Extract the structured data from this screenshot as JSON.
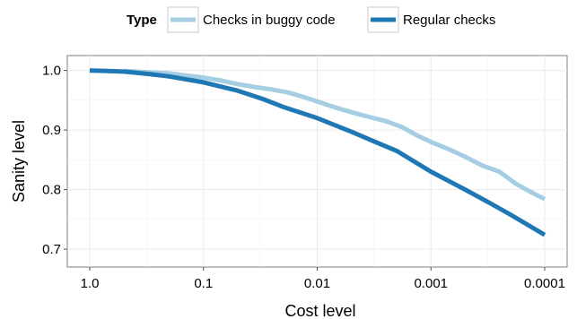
{
  "chart_data": {
    "type": "line",
    "xlabel": "Cost level",
    "ylabel": "Sanity level",
    "x_scale": "log-reversed",
    "xlim": [
      1.0,
      0.0001
    ],
    "ylim": [
      0.67,
      1.025
    ],
    "x_ticks": [
      {
        "value": 1.0,
        "label": "1.0"
      },
      {
        "value": 0.1,
        "label": "0.1"
      },
      {
        "value": 0.01,
        "label": "0.01"
      },
      {
        "value": 0.001,
        "label": "0.001"
      },
      {
        "value": 0.0001,
        "label": "0.0001"
      }
    ],
    "y_ticks": [
      {
        "value": 0.7,
        "label": "0.7"
      },
      {
        "value": 0.8,
        "label": "0.8"
      },
      {
        "value": 0.9,
        "label": "0.9"
      },
      {
        "value": 1.0,
        "label": "1.0"
      }
    ],
    "grid": true,
    "legend": {
      "placement": "top",
      "title": "Type",
      "entries": [
        {
          "label": "Checks in buggy code",
          "color": "#a6cee3"
        },
        {
          "label": "Regular checks",
          "color": "#1f78b4"
        }
      ]
    },
    "series": [
      {
        "name": "Checks in buggy code",
        "color": "#a6cee3",
        "x": [
          0.5,
          0.3,
          0.2,
          0.15,
          0.1,
          0.07,
          0.05,
          0.035,
          0.025,
          0.018,
          0.013,
          0.01,
          0.007,
          0.005,
          0.0035,
          0.0025,
          0.0018,
          0.0013,
          0.001,
          0.0007,
          0.0005,
          0.00035,
          0.00025,
          0.00018,
          0.00013,
          0.0001
        ],
        "y": [
          0.999,
          0.997,
          0.995,
          0.992,
          0.988,
          0.983,
          0.977,
          0.972,
          0.968,
          0.963,
          0.955,
          0.948,
          0.938,
          0.93,
          0.922,
          0.915,
          0.905,
          0.89,
          0.88,
          0.868,
          0.855,
          0.84,
          0.83,
          0.81,
          0.795,
          0.784
        ]
      },
      {
        "name": "Regular checks",
        "color": "#1f78b4",
        "x": [
          1.0,
          0.5,
          0.3,
          0.2,
          0.1,
          0.05,
          0.03,
          0.02,
          0.01,
          0.005,
          0.003,
          0.002,
          0.001,
          0.0005,
          0.0003,
          0.0002,
          0.0001
        ],
        "y": [
          1.0,
          0.998,
          0.994,
          0.99,
          0.98,
          0.966,
          0.952,
          0.939,
          0.92,
          0.897,
          0.879,
          0.865,
          0.83,
          0.8,
          0.777,
          0.758,
          0.724
        ]
      }
    ]
  }
}
